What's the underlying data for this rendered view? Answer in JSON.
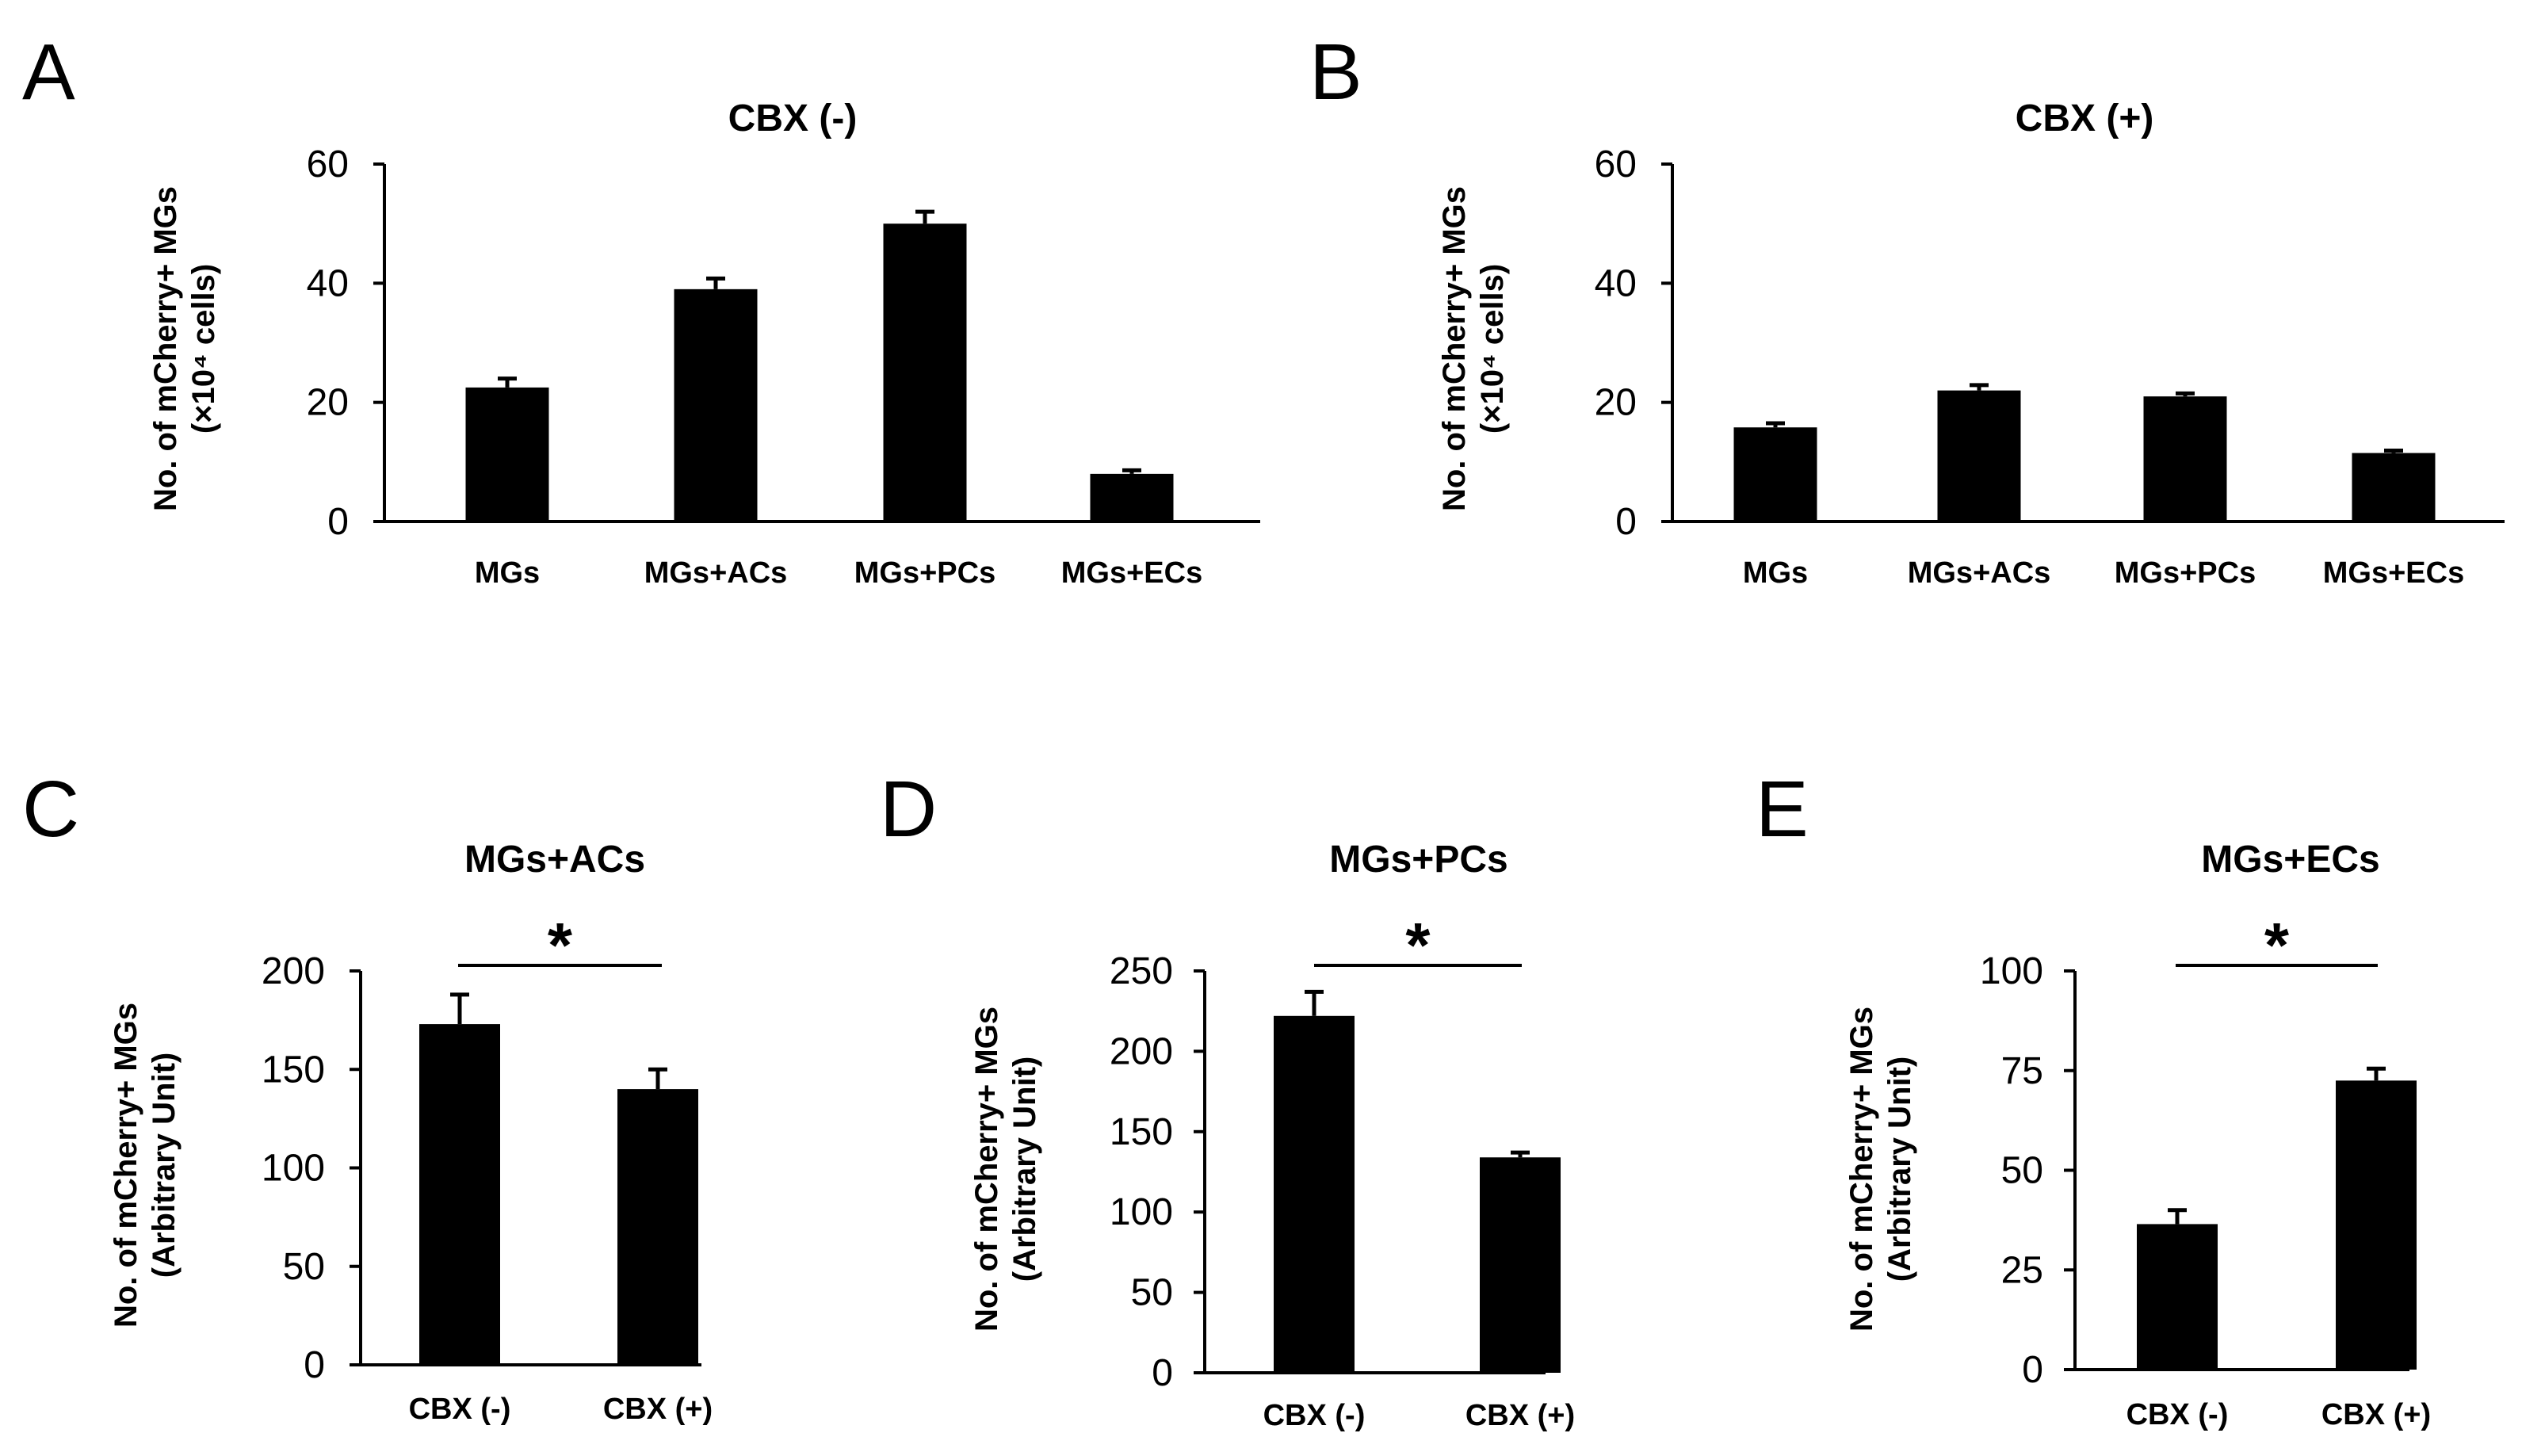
{
  "chart_data": [
    {
      "panel": "A",
      "type": "bar",
      "title": "CBX (-)",
      "ylabel": "No. of mCherry+ MGs",
      "ylabel_unit": "(×10⁴ cells)",
      "categories": [
        "MGs",
        "MGs+ACs",
        "MGs+PCs",
        "MGs+ECs"
      ],
      "values": [
        22.5,
        39,
        50,
        8
      ],
      "errors": [
        1.5,
        1.8,
        2,
        0.6
      ],
      "ylim": [
        0,
        60
      ],
      "yticks": [
        0,
        20,
        40,
        60
      ],
      "significance": null
    },
    {
      "panel": "B",
      "type": "bar",
      "title": "CBX (+)",
      "ylabel": "No. of mCherry+ MGs",
      "ylabel_unit": "(×10⁴ cells)",
      "categories": [
        "MGs",
        "MGs+ACs",
        "MGs+PCs",
        "MGs+ECs"
      ],
      "values": [
        15.8,
        22,
        21,
        11.5
      ],
      "errors": [
        0.7,
        0.9,
        0.5,
        0.4
      ],
      "ylim": [
        0,
        60
      ],
      "yticks": [
        0,
        20,
        40,
        60
      ],
      "significance": null
    },
    {
      "panel": "C",
      "type": "bar",
      "title": "MGs+ACs",
      "ylabel": "No. of mCherry+ MGs",
      "ylabel_unit": "(Arbitrary Unit)",
      "categories": [
        "CBX (-)",
        "CBX (+)"
      ],
      "values": [
        173,
        140
      ],
      "errors": [
        15,
        10
      ],
      "ylim": [
        0,
        200
      ],
      "yticks": [
        0,
        50,
        100,
        150,
        200
      ],
      "significance": "*"
    },
    {
      "panel": "D",
      "type": "bar",
      "title": "MGs+PCs",
      "ylabel": "No. of mCherry+ MGs",
      "ylabel_unit": "(Arbitrary Unit)",
      "categories": [
        "CBX (-)",
        "CBX (+)"
      ],
      "values": [
        222,
        134
      ],
      "errors": [
        15,
        3
      ],
      "ylim": [
        0,
        250
      ],
      "yticks": [
        0,
        50,
        100,
        150,
        200,
        250
      ],
      "significance": "*"
    },
    {
      "panel": "E",
      "type": "bar",
      "title": "MGs+ECs",
      "ylabel": "No. of mCherry+ MGs",
      "ylabel_unit": "(Arbitrary Unit)",
      "categories": [
        "CBX (-)",
        "CBX (+)"
      ],
      "values": [
        36.5,
        72.5
      ],
      "errors": [
        3.5,
        3
      ],
      "ylim": [
        0,
        100
      ],
      "yticks": [
        0,
        25,
        50,
        75,
        100
      ],
      "significance": "*"
    }
  ],
  "colors": {
    "bar": "#000000",
    "axis": "#000000",
    "background": "#ffffff"
  }
}
